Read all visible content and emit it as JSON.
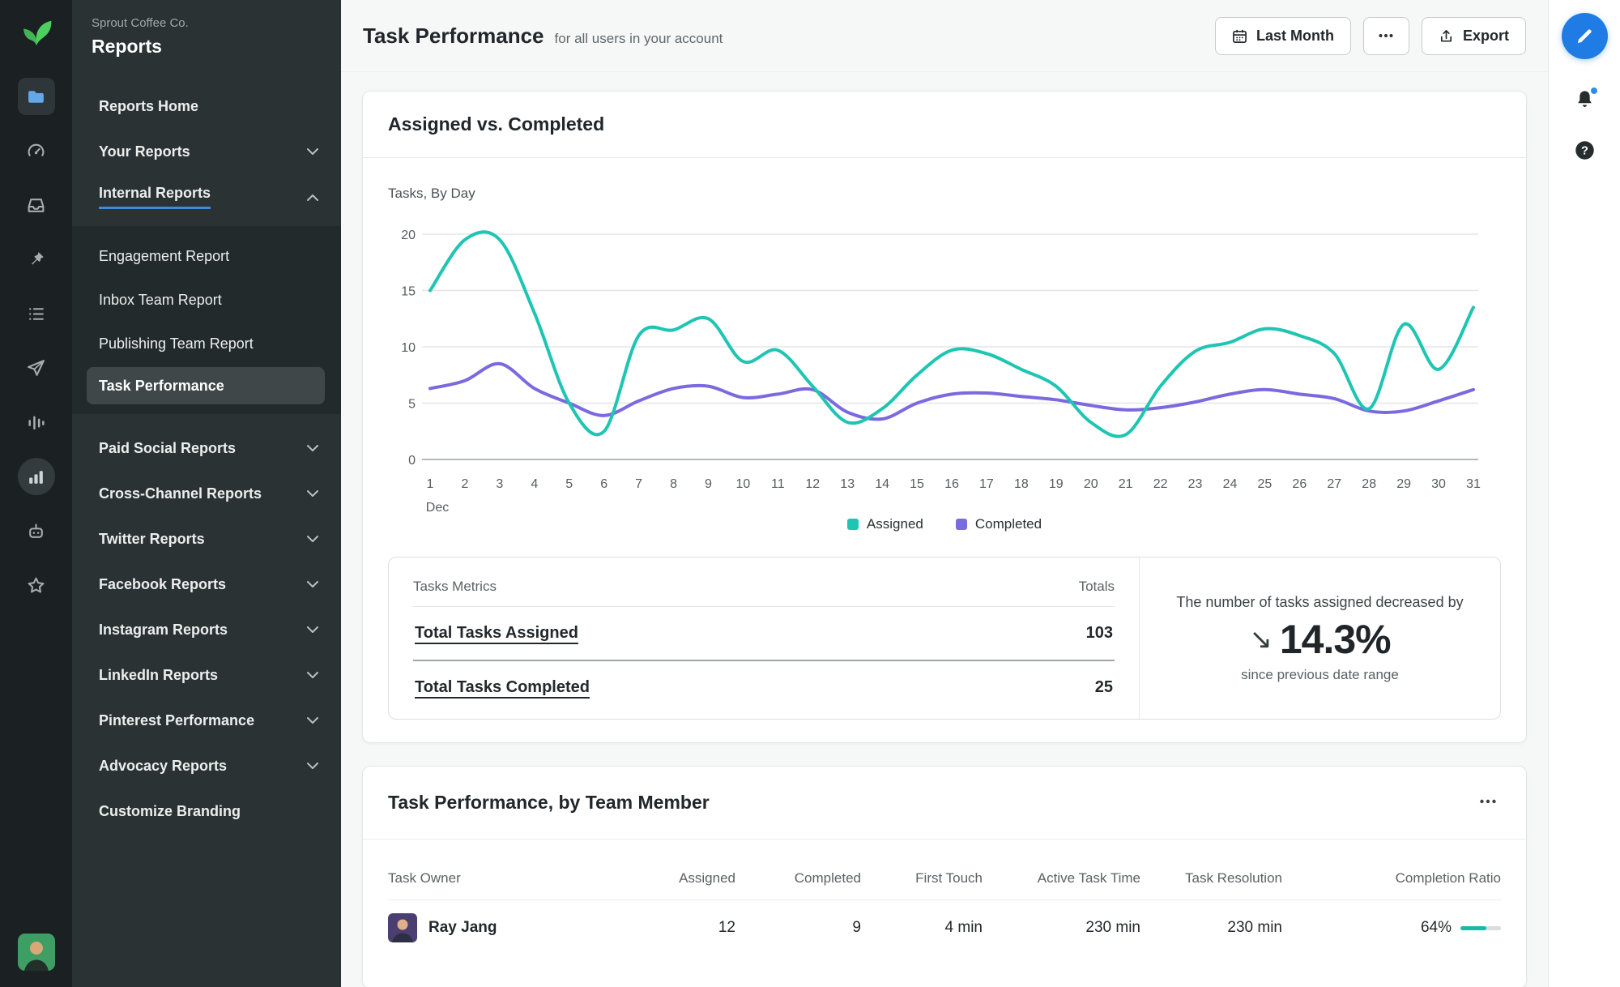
{
  "sidebar": {
    "company": "Sprout Coffee Co.",
    "title": "Reports",
    "items_top": [
      {
        "label": "Reports Home"
      },
      {
        "label": "Your Reports",
        "chevron": "down"
      },
      {
        "label": "Internal Reports",
        "chevron": "up",
        "active": true
      }
    ],
    "internal_group": [
      {
        "label": "Engagement Report"
      },
      {
        "label": "Inbox Team Report"
      },
      {
        "label": "Publishing Team Report"
      },
      {
        "label": "Task Performance",
        "selected": true
      }
    ],
    "items_bottom": [
      {
        "label": "Paid Social Reports",
        "chevron": "down"
      },
      {
        "label": "Cross-Channel Reports",
        "chevron": "down"
      },
      {
        "label": "Twitter Reports",
        "chevron": "down"
      },
      {
        "label": "Facebook Reports",
        "chevron": "down"
      },
      {
        "label": "Instagram Reports",
        "chevron": "down"
      },
      {
        "label": "LinkedIn Reports",
        "chevron": "down"
      },
      {
        "label": "Pinterest Performance",
        "chevron": "down"
      },
      {
        "label": "Advocacy Reports",
        "chevron": "down"
      },
      {
        "label": "Customize Branding"
      }
    ]
  },
  "header": {
    "title": "Task Performance",
    "subtitle": "for all users in your account",
    "date_range_label": "Last Month",
    "export_label": "Export"
  },
  "chart_card": {
    "title": "Assigned vs. Completed",
    "axis_title": "Tasks, By Day"
  },
  "chart_data": {
    "type": "line",
    "title": "Assigned vs. Completed",
    "xlabel": "Day of December",
    "x_month_label": "Dec",
    "x": [
      1,
      2,
      3,
      4,
      5,
      6,
      7,
      8,
      9,
      10,
      11,
      12,
      13,
      14,
      15,
      16,
      17,
      18,
      19,
      20,
      21,
      22,
      23,
      24,
      25,
      26,
      27,
      28,
      29,
      30,
      31
    ],
    "ylim": [
      0,
      20
    ],
    "yticks": [
      0,
      5,
      10,
      15,
      20
    ],
    "grid": true,
    "legend_position": "bottom",
    "series": [
      {
        "name": "Assigned",
        "color": "#1ec5b2",
        "values": [
          15,
          19.5,
          19.5,
          13,
          5,
          2.5,
          11,
          11.5,
          12.5,
          8.7,
          9.7,
          6.5,
          3.3,
          4.5,
          7.5,
          9.7,
          9.4,
          8,
          6.5,
          3.3,
          2.2,
          6.5,
          9.6,
          10.4,
          11.6,
          11,
          9.4,
          4.5,
          12,
          8,
          13.5
        ]
      },
      {
        "name": "Completed",
        "color": "#7a6ae0",
        "values": [
          6.3,
          7,
          8.5,
          6.3,
          5,
          3.9,
          5.2,
          6.3,
          6.5,
          5.5,
          5.8,
          6.2,
          4.2,
          3.6,
          5,
          5.8,
          5.9,
          5.6,
          5.3,
          4.8,
          4.4,
          4.6,
          5.1,
          5.8,
          6.2,
          5.8,
          5.4,
          4.3,
          4.3,
          5.2,
          6.2
        ]
      }
    ]
  },
  "metrics": {
    "col_label": "Tasks Metrics",
    "col_totals": "Totals",
    "rows": [
      {
        "label": "Total Tasks Assigned",
        "value": "103"
      },
      {
        "label": "Total Tasks Completed",
        "value": "25"
      }
    ],
    "summary": {
      "line1": "The number of tasks assigned decreased by",
      "arrow": "↘",
      "value": "14.3%",
      "line2": "since previous date range"
    }
  },
  "team_card": {
    "title": "Task Performance, by Team Member",
    "columns": [
      "Task Owner",
      "Assigned",
      "Completed",
      "First Touch",
      "Active Task Time",
      "Task Resolution",
      "Completion Ratio"
    ],
    "rows": [
      {
        "name": "Ray Jang",
        "assigned": "12",
        "completed": "9",
        "first_touch": "4 min",
        "active_task_time": "230 min",
        "task_resolution": "230 min",
        "completion_ratio": "64%",
        "completion_pct": 64
      }
    ]
  },
  "icons": {
    "nav_rail": [
      "sprout-logo",
      "folder-icon",
      "gauge-icon",
      "inbox-icon",
      "pin-icon",
      "list-icon",
      "send-icon",
      "audio-bars-icon",
      "bar-chart-icon",
      "bot-icon",
      "star-icon",
      "user-avatar"
    ],
    "header": [
      "calendar-icon",
      "more-dots-icon",
      "export-icon"
    ],
    "right_rail": [
      "compose-pencil-icon",
      "bell-icon",
      "help-icon"
    ]
  },
  "colors": {
    "assigned": "#1ec5b2",
    "completed": "#7a6ae0",
    "accent_blue": "#1f7ce4",
    "sprout_green": "#4ccf5f",
    "ratio_bar": "#17b9a7"
  }
}
